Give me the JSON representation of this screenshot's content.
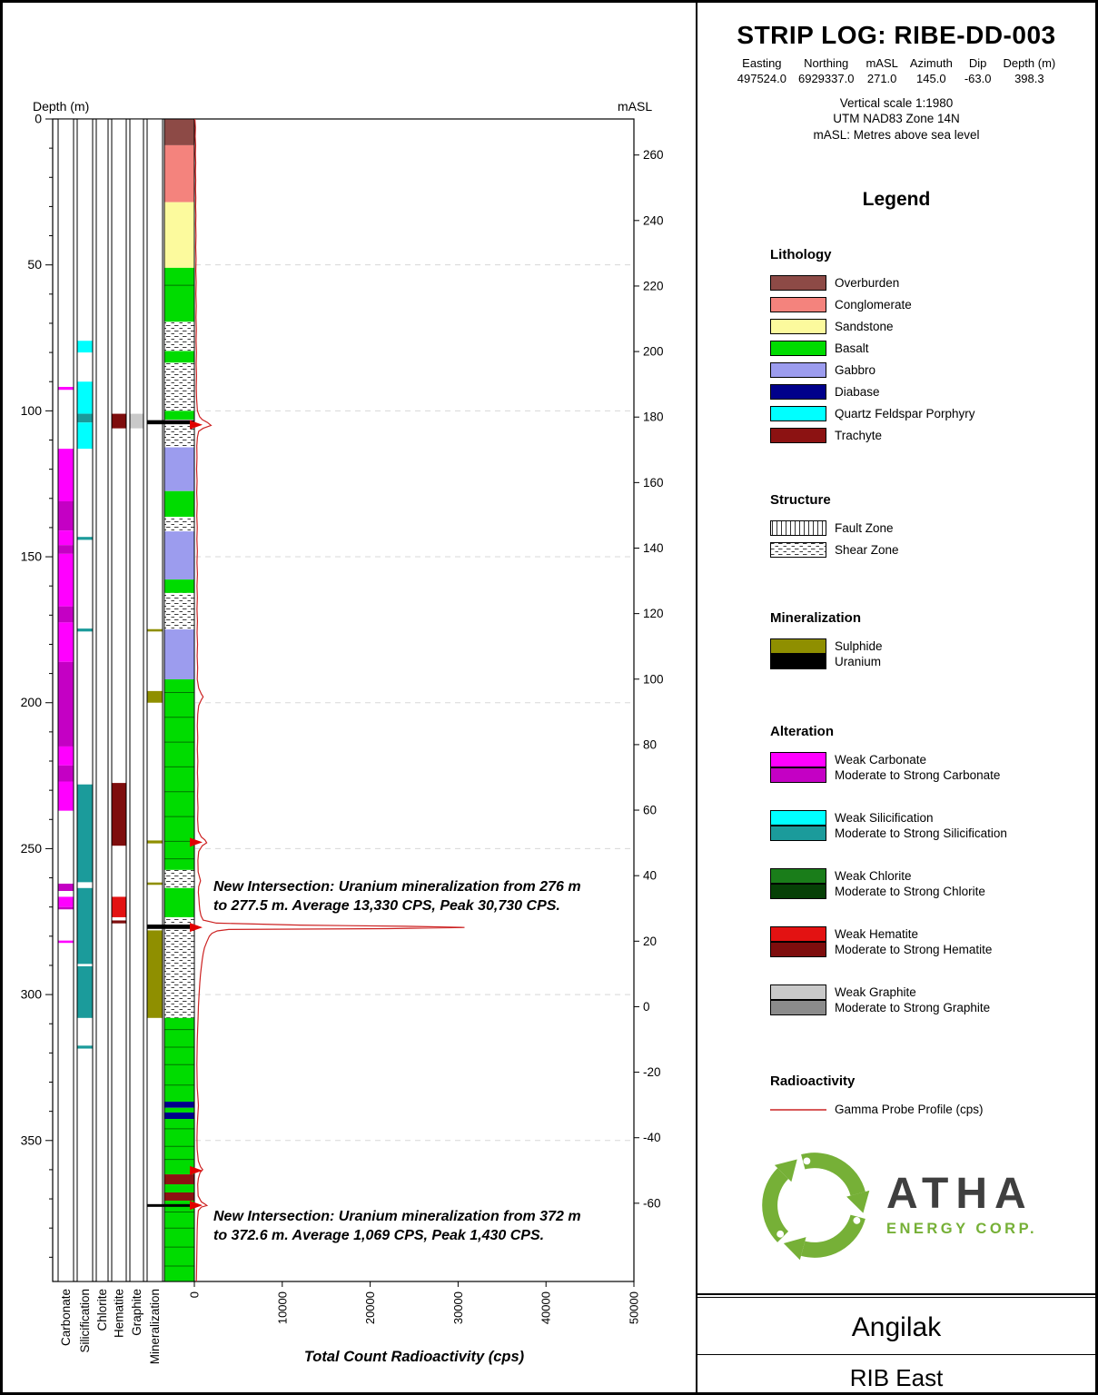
{
  "header": {
    "title": "STRIP LOG: RIBE-DD-003",
    "fields": [
      {
        "label": "Easting",
        "value": "497524.0"
      },
      {
        "label": "Northing",
        "value": "6929337.0"
      },
      {
        "label": "mASL",
        "value": "271.0"
      },
      {
        "label": "Azimuth",
        "value": "145.0"
      },
      {
        "label": "Dip",
        "value": "-63.0"
      },
      {
        "label": "Depth (m)",
        "value": "398.3"
      }
    ],
    "scale_note": "Vertical scale 1:1980",
    "utm_note": "UTM NAD83 Zone 14N",
    "masl_note": "mASL: Metres above sea level"
  },
  "branding": {
    "company": "ATHA",
    "tagline": "ENERGY CORP."
  },
  "footer": {
    "project": "Angilak",
    "area": "RIB East"
  },
  "colors": {
    "Overburden": "#8d4a46",
    "Conglomerate": "#f4837d",
    "Sandstone": "#fcfa9d",
    "Basalt": "#00dc00",
    "Gabbro": "#9c9cee",
    "Diabase": "#00008b",
    "Quartz Feldspar Porphyry": "#00ffff",
    "Trachyte": "#8c1212",
    "Sulphide": "#8f8f00",
    "Uranium": "#000000",
    "carbonate_weak": "#ff00ff",
    "carbonate_mod": "#c400c4",
    "silicification_weak": "#00ffff",
    "silicification_mod": "#1b9b9b",
    "chlorite_weak": "#1a7d1a",
    "chlorite_mod": "#064006",
    "hematite_weak": "#e31212",
    "hematite_mod": "#7e0d0d",
    "graphite_weak": "#c9c9c9",
    "graphite_mod": "#8b8b8b",
    "gamma_line": "#cc2222",
    "logo_green": "#76b037"
  },
  "legend": {
    "title": "Legend",
    "sections": [
      {
        "id": "lithology",
        "heading": "Lithology",
        "style": "spaced",
        "items": [
          {
            "label": "Overburden",
            "color": "#8d4a46"
          },
          {
            "label": "Conglomerate",
            "color": "#f4837d"
          },
          {
            "label": "Sandstone",
            "color": "#fcfa9d"
          },
          {
            "label": "Basalt",
            "color": "#00dc00"
          },
          {
            "label": "Gabbro",
            "color": "#9c9cee"
          },
          {
            "label": "Diabase",
            "color": "#00008b"
          },
          {
            "label": "Quartz Feldspar Porphyry",
            "color": "#00ffff"
          },
          {
            "label": "Trachyte",
            "color": "#8c1212"
          }
        ]
      },
      {
        "id": "structure",
        "heading": "Structure",
        "style": "spaced",
        "items": [
          {
            "label": "Fault Zone",
            "pattern": "fault"
          },
          {
            "label": "Shear Zone",
            "pattern": "shear"
          }
        ]
      },
      {
        "id": "mineralization",
        "heading": "Mineralization",
        "style": "stacked",
        "items": [
          {
            "label": "Sulphide",
            "color": "#8f8f00"
          },
          {
            "label": "Uranium",
            "color": "#000000"
          }
        ]
      },
      {
        "id": "alteration",
        "heading": "Alteration",
        "style": "pairs",
        "items": [
          {
            "label": "Weak Carbonate",
            "color": "#ff00ff"
          },
          {
            "label": "Moderate to Strong Carbonate",
            "color": "#c400c4"
          },
          {
            "label": "Weak Silicification",
            "color": "#00ffff"
          },
          {
            "label": "Moderate to Strong Silicification",
            "color": "#1b9b9b"
          },
          {
            "label": "Weak Chlorite",
            "color": "#1a7d1a"
          },
          {
            "label": "Moderate to Strong Chlorite",
            "color": "#064006"
          },
          {
            "label": "Weak Hematite",
            "color": "#e31212"
          },
          {
            "label": "Moderate to Strong Hematite",
            "color": "#7e0d0d"
          },
          {
            "label": "Weak Graphite",
            "color": "#c9c9c9"
          },
          {
            "label": "Moderate to Strong Graphite",
            "color": "#8b8b8b"
          }
        ]
      },
      {
        "id": "radioactivity",
        "heading": "Radioactivity",
        "style": "spaced",
        "items": [
          {
            "label": "Gamma Probe Profile (cps)",
            "pattern": "line",
            "color": "#cc2222"
          }
        ]
      }
    ]
  },
  "chart_data": {
    "type": "strip-log",
    "title": "STRIP LOG: RIBE-DD-003",
    "depth_axis": {
      "label": "Depth (m)",
      "min": 0,
      "max": 398.3,
      "major_ticks": [
        0,
        50,
        100,
        150,
        200,
        250,
        300,
        350
      ],
      "minor_tick_interval": 10
    },
    "masl_axis": {
      "label": "mASL",
      "surface_masl": 271.0,
      "dip_factor": 0.891,
      "ticks": [
        260,
        240,
        220,
        200,
        180,
        160,
        140,
        120,
        100,
        80,
        60,
        40,
        20,
        0,
        -20,
        -40,
        -60
      ]
    },
    "gamma_axis": {
      "label": "Total Count Radioactivity (cps)",
      "min": 0,
      "max": 50000,
      "ticks": [
        0,
        10000,
        20000,
        30000,
        40000,
        50000
      ]
    },
    "columns": [
      "Carbonate",
      "Silicification",
      "Chlorite",
      "Hematite",
      "Graphite",
      "Mineralization"
    ],
    "gridline_depths": [
      50,
      100,
      150,
      200,
      250,
      300,
      350
    ],
    "lithology_intervals": [
      {
        "from": 0,
        "to": 9,
        "unit": "Overburden"
      },
      {
        "from": 9,
        "to": 28.5,
        "unit": "Conglomerate"
      },
      {
        "from": 28.5,
        "to": 51,
        "unit": "Sandstone"
      },
      {
        "from": 51,
        "to": 69.5,
        "unit": "Basalt"
      },
      {
        "from": 69.5,
        "to": 79.5,
        "unit": "Shear"
      },
      {
        "from": 79.5,
        "to": 83.5,
        "unit": "Basalt"
      },
      {
        "from": 83.5,
        "to": 100,
        "unit": "Shear"
      },
      {
        "from": 100,
        "to": 103,
        "unit": "Basalt"
      },
      {
        "from": 103,
        "to": 112.5,
        "unit": "Shear"
      },
      {
        "from": 112.5,
        "to": 127.5,
        "unit": "Gabbro"
      },
      {
        "from": 127.5,
        "to": 136.3,
        "unit": "Basalt"
      },
      {
        "from": 136.3,
        "to": 141.3,
        "unit": "Shear"
      },
      {
        "from": 141.3,
        "to": 157.8,
        "unit": "Gabbro"
      },
      {
        "from": 157.8,
        "to": 162.4,
        "unit": "Basalt"
      },
      {
        "from": 162.4,
        "to": 174.9,
        "unit": "Shear"
      },
      {
        "from": 174.9,
        "to": 192,
        "unit": "Gabbro"
      },
      {
        "from": 192,
        "to": 257.3,
        "unit": "Basalt"
      },
      {
        "from": 257.3,
        "to": 263.5,
        "unit": "Shear"
      },
      {
        "from": 263.5,
        "to": 273.5,
        "unit": "Basalt"
      },
      {
        "from": 273.5,
        "to": 308,
        "unit": "Shear"
      },
      {
        "from": 308,
        "to": 336.7,
        "unit": "Basalt"
      },
      {
        "from": 336.7,
        "to": 338.8,
        "unit": "Diabase"
      },
      {
        "from": 338.8,
        "to": 340.4,
        "unit": "Basalt"
      },
      {
        "from": 340.4,
        "to": 342.6,
        "unit": "Diabase"
      },
      {
        "from": 342.6,
        "to": 361.6,
        "unit": "Basalt"
      },
      {
        "from": 361.6,
        "to": 365,
        "unit": "Trachyte"
      },
      {
        "from": 365,
        "to": 367.8,
        "unit": "Basalt"
      },
      {
        "from": 367.8,
        "to": 370.6,
        "unit": "Trachyte"
      },
      {
        "from": 370.6,
        "to": 398.3,
        "unit": "Basalt"
      }
    ],
    "contact_depths": [
      57,
      196.5,
      205,
      213.5,
      222,
      230.5,
      239,
      247.5,
      253.5,
      312,
      318,
      324,
      331,
      346,
      352,
      356.5,
      374.5,
      380,
      386.5,
      393
    ],
    "alteration": {
      "carbonate": [
        {
          "from": 91.8,
          "to": 92.8,
          "grade": "weak"
        },
        {
          "from": 113,
          "to": 131,
          "grade": "weak"
        },
        {
          "from": 131,
          "to": 141,
          "grade": "mod"
        },
        {
          "from": 141,
          "to": 146,
          "grade": "weak"
        },
        {
          "from": 146,
          "to": 149,
          "grade": "mod"
        },
        {
          "from": 149,
          "to": 167,
          "grade": "weak"
        },
        {
          "from": 167,
          "to": 172.5,
          "grade": "mod"
        },
        {
          "from": 172.5,
          "to": 186,
          "grade": "weak"
        },
        {
          "from": 186,
          "to": 215,
          "grade": "mod"
        },
        {
          "from": 215,
          "to": 221.5,
          "grade": "weak"
        },
        {
          "from": 221.5,
          "to": 227,
          "grade": "mod"
        },
        {
          "from": 227,
          "to": 237,
          "grade": "weak"
        },
        {
          "from": 262,
          "to": 264.5,
          "grade": "mod"
        },
        {
          "from": 266.5,
          "to": 270,
          "grade": "weak"
        },
        {
          "from": 270,
          "to": 270.8,
          "grade": "mod"
        },
        {
          "from": 281.5,
          "to": 282.3,
          "grade": "weak"
        }
      ],
      "silicification": [
        {
          "from": 76,
          "to": 80,
          "grade": "weak"
        },
        {
          "from": 90,
          "to": 101,
          "grade": "weak"
        },
        {
          "from": 101,
          "to": 104,
          "grade": "mod"
        },
        {
          "from": 104,
          "to": 113,
          "grade": "weak"
        },
        {
          "from": 143.2,
          "to": 144.2,
          "grade": "mod"
        },
        {
          "from": 174.6,
          "to": 175.6,
          "grade": "mod"
        },
        {
          "from": 228,
          "to": 261.5,
          "grade": "mod"
        },
        {
          "from": 263.5,
          "to": 289.5,
          "grade": "mod"
        },
        {
          "from": 290.3,
          "to": 308,
          "grade": "mod"
        },
        {
          "from": 317.5,
          "to": 318.5,
          "grade": "mod"
        }
      ],
      "chlorite": [],
      "hematite": [
        {
          "from": 101,
          "to": 106,
          "grade": "mod"
        },
        {
          "from": 227.5,
          "to": 249,
          "grade": "mod"
        },
        {
          "from": 266.5,
          "to": 273.5,
          "grade": "weak"
        },
        {
          "from": 274.6,
          "to": 275.6,
          "grade": "mod"
        }
      ],
      "graphite": [
        {
          "from": 101,
          "to": 106,
          "grade": "weak"
        }
      ]
    },
    "mineralization_intervals": [
      {
        "from": 103.2,
        "to": 104.6,
        "type": "uranium"
      },
      {
        "from": 174.8,
        "to": 175.6,
        "type": "sulphide"
      },
      {
        "from": 196,
        "to": 200,
        "type": "sulphide"
      },
      {
        "from": 247.2,
        "to": 248.2,
        "type": "sulphide"
      },
      {
        "from": 261.6,
        "to": 262.4,
        "type": "sulphide"
      },
      {
        "from": 276,
        "to": 277.5,
        "type": "uranium"
      },
      {
        "from": 278,
        "to": 308,
        "type": "sulphide"
      },
      {
        "from": 371.8,
        "to": 372.6,
        "type": "uranium"
      }
    ],
    "arrow_depths": [
      104.8,
      247.8,
      277,
      360.3,
      372.2
    ],
    "annotations": [
      {
        "anchor_depth": 264.5,
        "lines": [
          "New Intersection: Uranium mineralization from 276 m",
          "to 277.5 m. Average 13,330 CPS, Peak 30,730 CPS."
        ]
      },
      {
        "anchor_depth": 377.5,
        "lines": [
          "New Intersection: Uranium mineralization from 372 m",
          "to 372.6 m. Average 1,069 CPS, Peak 1,430 CPS."
        ]
      }
    ],
    "gamma_profile": [
      [
        0,
        60
      ],
      [
        3,
        120
      ],
      [
        6,
        90
      ],
      [
        9,
        140
      ],
      [
        12,
        110
      ],
      [
        15,
        150
      ],
      [
        18,
        120
      ],
      [
        21,
        160
      ],
      [
        24,
        130
      ],
      [
        27,
        170
      ],
      [
        30,
        140
      ],
      [
        33,
        180
      ],
      [
        36,
        150
      ],
      [
        40,
        190
      ],
      [
        44,
        160
      ],
      [
        48,
        200
      ],
      [
        52,
        170
      ],
      [
        56,
        210
      ],
      [
        60,
        180
      ],
      [
        64,
        220
      ],
      [
        68,
        190
      ],
      [
        72,
        230
      ],
      [
        76,
        200
      ],
      [
        80,
        240
      ],
      [
        84,
        210
      ],
      [
        88,
        250
      ],
      [
        92,
        220
      ],
      [
        96,
        260
      ],
      [
        100,
        350
      ],
      [
        102,
        600
      ],
      [
        103,
        900
      ],
      [
        104,
        1500
      ],
      [
        105,
        1900
      ],
      [
        106,
        1000
      ],
      [
        107,
        500
      ],
      [
        109,
        350
      ],
      [
        112,
        280
      ],
      [
        116,
        300
      ],
      [
        120,
        260
      ],
      [
        124,
        310
      ],
      [
        128,
        270
      ],
      [
        132,
        320
      ],
      [
        136,
        280
      ],
      [
        140,
        330
      ],
      [
        144,
        290
      ],
      [
        148,
        340
      ],
      [
        152,
        300
      ],
      [
        156,
        350
      ],
      [
        160,
        300
      ],
      [
        164,
        340
      ],
      [
        168,
        300
      ],
      [
        172,
        350
      ],
      [
        176,
        310
      ],
      [
        180,
        360
      ],
      [
        184,
        320
      ],
      [
        188,
        370
      ],
      [
        192,
        330
      ],
      [
        195,
        500
      ],
      [
        197,
        800
      ],
      [
        198,
        1000
      ],
      [
        199,
        800
      ],
      [
        201,
        500
      ],
      [
        204,
        380
      ],
      [
        208,
        340
      ],
      [
        212,
        380
      ],
      [
        216,
        340
      ],
      [
        220,
        390
      ],
      [
        224,
        350
      ],
      [
        228,
        400
      ],
      [
        232,
        360
      ],
      [
        236,
        410
      ],
      [
        240,
        370
      ],
      [
        244,
        450
      ],
      [
        246,
        800
      ],
      [
        247,
        1200
      ],
      [
        248,
        1400
      ],
      [
        249,
        900
      ],
      [
        251,
        500
      ],
      [
        254,
        400
      ],
      [
        258,
        430
      ],
      [
        261,
        700
      ],
      [
        263,
        500
      ],
      [
        265,
        450
      ],
      [
        267,
        520
      ],
      [
        269,
        560
      ],
      [
        271,
        620
      ],
      [
        273,
        750
      ],
      [
        274.5,
        1000
      ],
      [
        275.5,
        2500
      ],
      [
        276.2,
        12000
      ],
      [
        276.6,
        24000
      ],
      [
        277,
        30730
      ],
      [
        277.4,
        22000
      ],
      [
        277.7,
        3900
      ],
      [
        278.2,
        2600
      ],
      [
        279,
        2000
      ],
      [
        280,
        1700
      ],
      [
        282,
        1400
      ],
      [
        284,
        1150
      ],
      [
        286,
        1000
      ],
      [
        288,
        900
      ],
      [
        290,
        820
      ],
      [
        293,
        700
      ],
      [
        296,
        620
      ],
      [
        300,
        540
      ],
      [
        304,
        470
      ],
      [
        308,
        420
      ],
      [
        312,
        370
      ],
      [
        316,
        330
      ],
      [
        320,
        310
      ],
      [
        324,
        290
      ],
      [
        328,
        310
      ],
      [
        332,
        330
      ],
      [
        336,
        420
      ],
      [
        338,
        460
      ],
      [
        340,
        420
      ],
      [
        342,
        380
      ],
      [
        345,
        330
      ],
      [
        349,
        300
      ],
      [
        353,
        320
      ],
      [
        357,
        450
      ],
      [
        359,
        700
      ],
      [
        360,
        950
      ],
      [
        361,
        650
      ],
      [
        363,
        450
      ],
      [
        365,
        380
      ],
      [
        367,
        400
      ],
      [
        369,
        430
      ],
      [
        371,
        800
      ],
      [
        371.8,
        1200
      ],
      [
        372.3,
        1430
      ],
      [
        372.8,
        800
      ],
      [
        374,
        450
      ],
      [
        377,
        360
      ],
      [
        381,
        320
      ],
      [
        385,
        300
      ],
      [
        389,
        280
      ],
      [
        393,
        260
      ],
      [
        397,
        240
      ],
      [
        398.3,
        230
      ]
    ]
  }
}
